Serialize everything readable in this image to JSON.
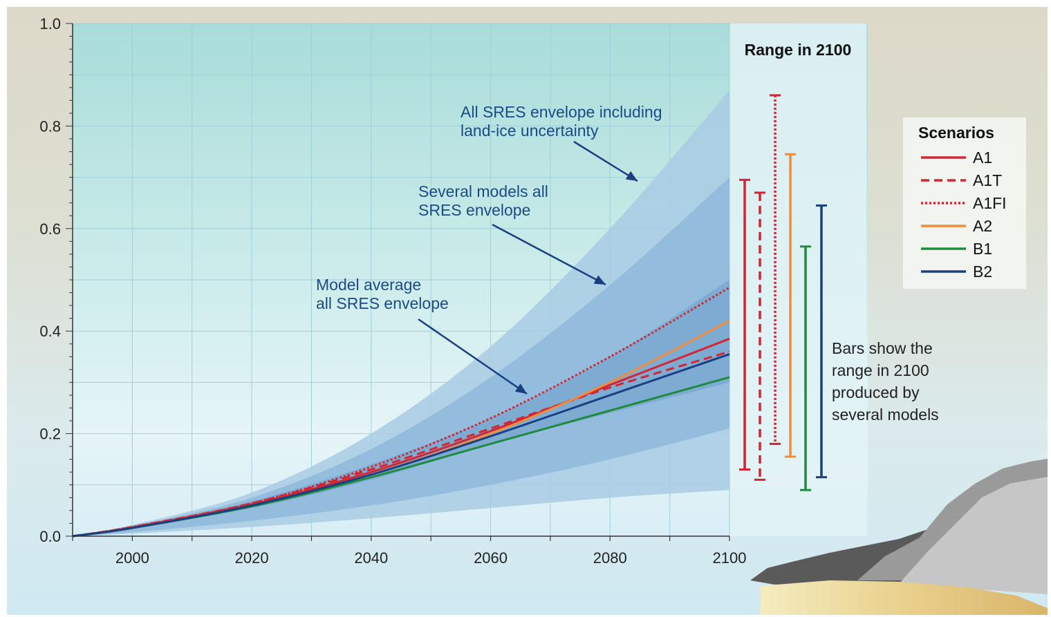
{
  "chart_data": {
    "type": "line",
    "title": "",
    "xlabel": "",
    "ylabel": "",
    "xlim": [
      1990,
      2100
    ],
    "ylim": [
      0.0,
      1.0
    ],
    "x_ticks": [
      2000,
      2020,
      2040,
      2060,
      2080,
      2100
    ],
    "y_ticks": [
      "0.0",
      "0.2",
      "0.4",
      "0.6",
      "0.8",
      "1.0"
    ],
    "grid": true,
    "envelopes": [
      {
        "name": "All SRES envelope including land-ice uncertainty",
        "color": "#a8cbe3",
        "x": [
          1990,
          2000,
          2020,
          2040,
          2060,
          2080,
          2100
        ],
        "lower": [
          0.0,
          0.005,
          0.018,
          0.035,
          0.055,
          0.075,
          0.09
        ],
        "upper": [
          0.0,
          0.022,
          0.085,
          0.2,
          0.37,
          0.6,
          0.87
        ]
      },
      {
        "name": "Several models all SRES envelope",
        "color": "#8fb9da",
        "x": [
          1990,
          2000,
          2020,
          2040,
          2060,
          2080,
          2100
        ],
        "lower": [
          0.0,
          0.008,
          0.03,
          0.06,
          0.1,
          0.15,
          0.21
        ],
        "upper": [
          0.0,
          0.02,
          0.075,
          0.17,
          0.31,
          0.49,
          0.7
        ]
      },
      {
        "name": "Model average all SRES envelope",
        "color": "#7aa8d0",
        "x": [
          1990,
          2000,
          2020,
          2040,
          2060,
          2080,
          2100
        ],
        "lower": [
          0.0,
          0.016,
          0.055,
          0.11,
          0.18,
          0.24,
          0.3
        ],
        "upper": [
          0.0,
          0.019,
          0.068,
          0.14,
          0.23,
          0.35,
          0.5
        ]
      }
    ],
    "series": [
      {
        "name": "A1",
        "color": "#d42431",
        "dash": "solid",
        "x": [
          1990,
          2000,
          2020,
          2040,
          2060,
          2080,
          2100
        ],
        "values": [
          0.0,
          0.017,
          0.062,
          0.125,
          0.205,
          0.295,
          0.385
        ]
      },
      {
        "name": "A1T",
        "color": "#d42431",
        "dash": "dashed",
        "x": [
          1990,
          2000,
          2020,
          2040,
          2060,
          2080,
          2100
        ],
        "values": [
          0.0,
          0.018,
          0.064,
          0.13,
          0.21,
          0.29,
          0.36
        ]
      },
      {
        "name": "A1FI",
        "color": "#d42431",
        "dash": "dotted",
        "x": [
          1990,
          2000,
          2020,
          2040,
          2060,
          2080,
          2100
        ],
        "values": [
          0.0,
          0.018,
          0.064,
          0.135,
          0.23,
          0.35,
          0.485
        ]
      },
      {
        "name": "A2",
        "color": "#f28c3c",
        "dash": "solid",
        "x": [
          1990,
          2000,
          2020,
          2040,
          2060,
          2080,
          2100
        ],
        "values": [
          0.0,
          0.016,
          0.06,
          0.12,
          0.2,
          0.3,
          0.42
        ]
      },
      {
        "name": "B1",
        "color": "#1e8a3c",
        "dash": "solid",
        "x": [
          1990,
          2000,
          2020,
          2040,
          2060,
          2080,
          2100
        ],
        "values": [
          0.0,
          0.016,
          0.058,
          0.115,
          0.18,
          0.245,
          0.31
        ]
      },
      {
        "name": "B2",
        "color": "#1a3e82",
        "dash": "solid",
        "x": [
          1990,
          2000,
          2020,
          2040,
          2060,
          2080,
          2100
        ],
        "values": [
          0.0,
          0.016,
          0.06,
          0.12,
          0.195,
          0.275,
          0.355
        ]
      }
    ],
    "range_2100": {
      "title": "Range in 2100",
      "bars": [
        {
          "name": "A1",
          "color": "#d42431",
          "dash": "solid",
          "min": 0.13,
          "max": 0.695
        },
        {
          "name": "A1T",
          "color": "#d42431",
          "dash": "dashed",
          "min": 0.11,
          "max": 0.67
        },
        {
          "name": "A1FI",
          "color": "#d42431",
          "dash": "dotted",
          "min": 0.18,
          "max": 0.86
        },
        {
          "name": "A2",
          "color": "#f28c3c",
          "dash": "solid",
          "min": 0.155,
          "max": 0.745
        },
        {
          "name": "B1",
          "color": "#1e8a3c",
          "dash": "solid",
          "min": 0.09,
          "max": 0.565
        },
        {
          "name": "B2",
          "color": "#1a3e82",
          "dash": "solid",
          "min": 0.115,
          "max": 0.645
        }
      ],
      "note_lines": [
        "Bars show  the",
        "range in 2100",
        "produced by",
        "several models"
      ]
    },
    "legend": {
      "title": "Scenarios",
      "placement": "right",
      "items": [
        "A1",
        "A1T",
        "A1FI",
        "A2",
        "B1",
        "B2"
      ]
    },
    "annotations": [
      {
        "lines": [
          "All SRES envelope including",
          "land-ice uncertainty"
        ],
        "color": "#1a4a8a"
      },
      {
        "lines": [
          "Several models all",
          "SRES envelope"
        ],
        "color": "#1a4a8a"
      },
      {
        "lines": [
          "Model average",
          "all SRES envelope"
        ],
        "color": "#1a4a8a"
      }
    ]
  }
}
